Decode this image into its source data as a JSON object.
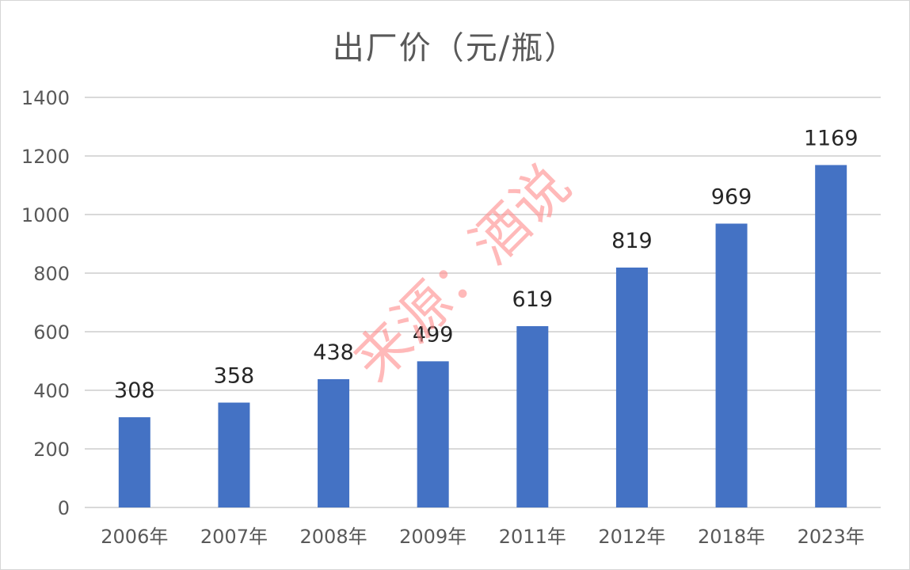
{
  "chart_data": {
    "type": "bar",
    "title": "出厂价（元/瓶）",
    "categories": [
      "2006年",
      "2007年",
      "2008年",
      "2009年",
      "2011年",
      "2012年",
      "2018年",
      "2023年"
    ],
    "values": [
      308,
      358,
      438,
      499,
      619,
      819,
      969,
      1169
    ],
    "data_labels": [
      "308",
      "358",
      "438",
      "499",
      "619",
      "819",
      "969",
      "1169"
    ],
    "ylim": [
      0,
      1400
    ],
    "yticks": [
      0,
      200,
      400,
      600,
      800,
      1000,
      1200,
      1400
    ],
    "ytick_labels": [
      "0",
      "200",
      "400",
      "600",
      "800",
      "1000",
      "1200",
      "1400"
    ],
    "xlabel": "",
    "ylabel": "",
    "grid": true,
    "legend": "none",
    "bar_color": "#4472C4",
    "grid_color": "#d9d9d9"
  },
  "watermark": {
    "text": "来源：酒说",
    "color": "#ff8a8a"
  }
}
